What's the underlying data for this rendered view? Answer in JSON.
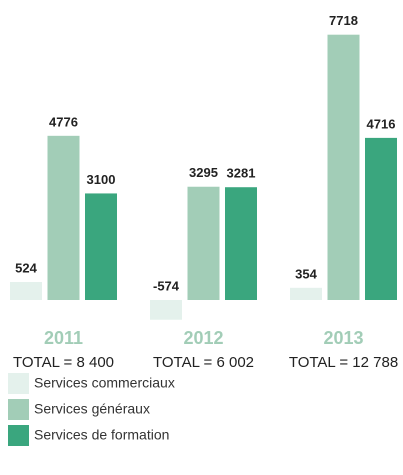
{
  "chart_data": {
    "type": "bar",
    "categories": [
      "2011",
      "2012",
      "2013"
    ],
    "series": [
      {
        "name": "Services commerciaux",
        "color": "#e4f1ec",
        "values": [
          524,
          -574,
          354
        ]
      },
      {
        "name": "Services généraux",
        "color": "#a2cdb7",
        "values": [
          4776,
          3295,
          7718
        ]
      },
      {
        "name": "Services de formation",
        "color": "#3aa67e",
        "values": [
          3100,
          3281,
          4716
        ]
      }
    ],
    "totals": [
      "TOTAL = 8 400",
      "TOTAL = 6 002",
      "TOTAL = 12 788"
    ],
    "ylim": [
      -800,
      8000
    ]
  }
}
